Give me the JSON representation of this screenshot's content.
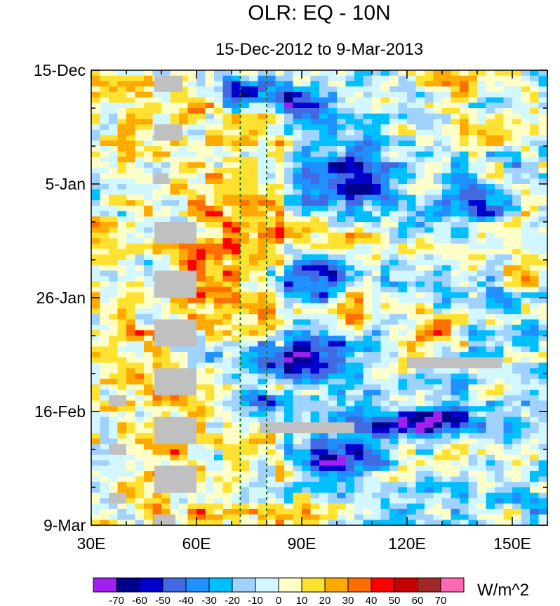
{
  "chart_data": {
    "type": "heatmap",
    "title": "OLR: EQ - 10N",
    "subtitle": "15-Dec-2012 to 9-Mar-2013",
    "x_ticks": [
      {
        "value": 30,
        "label": "30E"
      },
      {
        "value": 60,
        "label": "60E"
      },
      {
        "value": 90,
        "label": "90E"
      },
      {
        "value": 120,
        "label": "120E"
      },
      {
        "value": 150,
        "label": "150E"
      }
    ],
    "x_range": [
      30,
      160
    ],
    "y_ticks": [
      {
        "value": 0,
        "label": "15-Dec"
      },
      {
        "value": 21,
        "label": "5-Jan"
      },
      {
        "value": 42,
        "label": "26-Jan"
      },
      {
        "value": 63,
        "label": "16-Feb"
      },
      {
        "value": 84,
        "label": "9-Mar"
      }
    ],
    "y_range_days": [
      0,
      84
    ],
    "reference_lines_lon": [
      72.5,
      80
    ],
    "colorbar": {
      "unit": "W/m^2",
      "labels": [
        "-70",
        "-60",
        "-50",
        "-40",
        "-30",
        "-20",
        "-10",
        "0",
        "10",
        "20",
        "30",
        "40",
        "50",
        "60",
        "70"
      ],
      "levels": [
        -70,
        -60,
        -50,
        -40,
        -30,
        -20,
        -10,
        0,
        10,
        20,
        30,
        40,
        50,
        60,
        70
      ],
      "colors": [
        "#a020f0",
        "#00008b",
        "#0000cd",
        "#4169e1",
        "#1e90ff",
        "#00bfff",
        "#a0d2ff",
        "#d2f7ff",
        "#ffffc8",
        "#ffe132",
        "#ffaa00",
        "#ff6e00",
        "#ff0000",
        "#c80000",
        "#a02828",
        "#ff69b4"
      ]
    },
    "missing_color": "#c0c0c0",
    "anomaly_features": [
      {
        "lon": [
          123,
          150
        ],
        "day": [
          0,
          4
        ],
        "value": 42
      },
      {
        "lon": [
          65,
          82
        ],
        "day": [
          1,
          6
        ],
        "value": -55
      },
      {
        "lon": [
          82,
          100
        ],
        "day": [
          4,
          9
        ],
        "value": -50
      },
      {
        "lon": [
          88,
          115
        ],
        "day": [
          15,
          26
        ],
        "value": -45
      },
      {
        "lon": [
          130,
          150
        ],
        "day": [
          22,
          27
        ],
        "value": -45
      },
      {
        "lon": [
          120,
          160
        ],
        "day": [
          9,
          14
        ],
        "value": 25
      },
      {
        "lon": [
          55,
          82
        ],
        "day": [
          20,
          48
        ],
        "value": 25
      },
      {
        "lon": [
          82,
          96
        ],
        "day": [
          27,
          34
        ],
        "value": 22
      },
      {
        "lon": [
          95,
          115
        ],
        "day": [
          30,
          35
        ],
        "value": 28
      },
      {
        "lon": [
          100,
          112
        ],
        "day": [
          40,
          47
        ],
        "value": 38
      },
      {
        "lon": [
          120,
          135
        ],
        "day": [
          46,
          52
        ],
        "value": 35
      },
      {
        "lon": [
          145,
          160
        ],
        "day": [
          34,
          39
        ],
        "value": 32
      },
      {
        "lon": [
          80,
          110
        ],
        "day": [
          35,
          42
        ],
        "value": -40
      },
      {
        "lon": [
          60,
          110
        ],
        "day": [
          50,
          56
        ],
        "value": -45
      },
      {
        "lon": [
          70,
          82
        ],
        "day": [
          59,
          62
        ],
        "value": -60
      },
      {
        "lon": [
          105,
          145
        ],
        "day": [
          63,
          67
        ],
        "value": -55
      },
      {
        "lon": [
          90,
          110
        ],
        "day": [
          69,
          74
        ],
        "value": -50
      },
      {
        "lon": [
          88,
          100
        ],
        "day": [
          79,
          84
        ],
        "value": 38
      },
      {
        "lon": [
          40,
          60
        ],
        "day": [
          53,
          84
        ],
        "value": 12
      }
    ],
    "missing_segments": [
      {
        "lon": [
          48,
          56
        ],
        "day": [
          1,
          4
        ]
      },
      {
        "lon": [
          48,
          56
        ],
        "day": [
          10,
          13
        ]
      },
      {
        "lon": [
          48,
          52
        ],
        "day": [
          19,
          21
        ]
      },
      {
        "lon": [
          48,
          60
        ],
        "day": [
          28,
          32
        ]
      },
      {
        "lon": [
          48,
          60
        ],
        "day": [
          37,
          42
        ]
      },
      {
        "lon": [
          48,
          60
        ],
        "day": [
          46,
          51
        ]
      },
      {
        "lon": [
          48,
          60
        ],
        "day": [
          55,
          60
        ]
      },
      {
        "lon": [
          48,
          60
        ],
        "day": [
          64,
          69
        ]
      },
      {
        "lon": [
          48,
          60
        ],
        "day": [
          73,
          78
        ]
      },
      {
        "lon": [
          48,
          54
        ],
        "day": [
          82,
          84
        ]
      },
      {
        "lon": [
          35,
          40
        ],
        "day": [
          60,
          62
        ]
      },
      {
        "lon": [
          35,
          40
        ],
        "day": [
          69,
          71
        ]
      },
      {
        "lon": [
          35,
          40
        ],
        "day": [
          78,
          80
        ]
      },
      {
        "lon": [
          78,
          105
        ],
        "day": [
          65,
          67
        ]
      },
      {
        "lon": [
          120,
          147
        ],
        "day": [
          53,
          55
        ]
      }
    ]
  }
}
